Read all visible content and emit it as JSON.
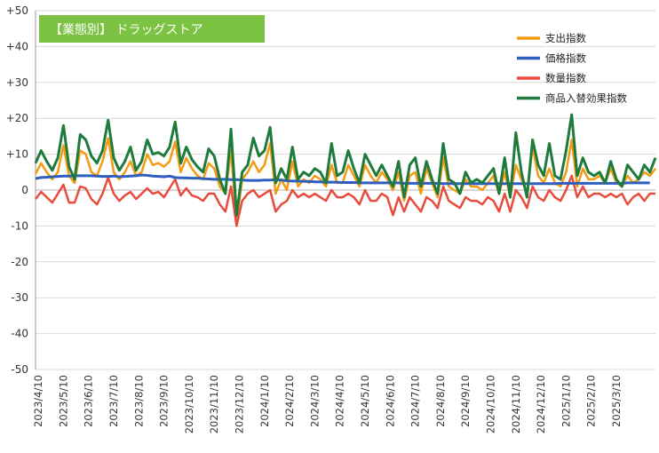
{
  "chart_data": {
    "type": "line",
    "title": "【業態別】 ドラッグストア",
    "title_bg_color": "#7CC243",
    "ylim": [
      -50,
      50
    ],
    "yticks": [
      -50,
      -40,
      -30,
      -20,
      -10,
      0,
      10,
      20,
      30,
      40,
      50
    ],
    "ytick_labels": [
      "-50",
      "-40",
      "-30",
      "-20",
      "-10",
      "0",
      "+10",
      "+20",
      "+30",
      "+40",
      "+50"
    ],
    "x_tick_labels": [
      "2023/4/10",
      "2023/5/10",
      "2023/6/10",
      "2023/7/10",
      "2023/8/10",
      "2023/9/10",
      "2023/10/10",
      "2023/11/10",
      "2023/12/10",
      "2024/1/10",
      "2024/2/10",
      "2024/3/10",
      "2024/4/10",
      "2024/5/10",
      "2024/6/10",
      "2024/7/10",
      "2024/8/10",
      "2024/9/10",
      "2024/10/10",
      "2024/11/10",
      "2024/12/10",
      "2025/1/10",
      "2025/2/10",
      "2025/3/10"
    ],
    "points_per_tick": 4.5,
    "grid": "horizontal",
    "legend_position": "top-right",
    "series": [
      {
        "name": "支出指数",
        "color": "#F39C12",
        "width": 2.5,
        "values": [
          4.5,
          7.5,
          5,
          3,
          5,
          12.5,
          4,
          2,
          11,
          10,
          5,
          4,
          8,
          14.5,
          5,
          3,
          5,
          8,
          4,
          5,
          10,
          7,
          7.5,
          6.5,
          8,
          13.5,
          5,
          9,
          6,
          4,
          3,
          7.5,
          6,
          1,
          -1,
          11,
          -9,
          3,
          5,
          8,
          5,
          7,
          13,
          -1,
          3,
          0,
          8,
          1,
          3,
          2,
          4,
          3,
          1,
          7,
          2,
          2,
          7,
          4,
          1,
          7,
          4,
          2,
          5,
          3,
          0,
          5,
          -3,
          4,
          5,
          -1,
          6,
          2,
          -2,
          9,
          1,
          0,
          -1,
          3,
          1,
          1,
          0,
          2,
          4,
          -1,
          5,
          -2,
          7,
          3,
          -1,
          12,
          4,
          2,
          6,
          2,
          1,
          5,
          14,
          1,
          6,
          3,
          3,
          4,
          2,
          6,
          2,
          1,
          4,
          2,
          3,
          5,
          4,
          6
        ]
      },
      {
        "name": "価格指数",
        "color": "#2E5FBF",
        "width": 3,
        "values": [
          3.2,
          3.5,
          3.6,
          3.7,
          3.8,
          3.9,
          3.9,
          4,
          4,
          4,
          4,
          3.9,
          3.8,
          3.8,
          3.9,
          3.7,
          3.8,
          3.9,
          4,
          4.2,
          4.1,
          3.9,
          3.8,
          3.7,
          3.9,
          3.5,
          3.4,
          3.4,
          3.3,
          3.3,
          3.2,
          3.1,
          3,
          3,
          3,
          2.9,
          2.9,
          2.8,
          2.7,
          2.7,
          2.7,
          2.8,
          2.8,
          2.9,
          2.8,
          2.6,
          2.5,
          2.5,
          2.4,
          2.4,
          2.3,
          2.3,
          2.2,
          2.2,
          2.2,
          2.1,
          2.1,
          2.1,
          2,
          2,
          2,
          2,
          2,
          2,
          2,
          2,
          1.9,
          1.9,
          1.9,
          1.9,
          1.9,
          1.9,
          1.9,
          1.8,
          1.8,
          1.8,
          1.8,
          1.8,
          1.8,
          1.8,
          1.8,
          1.8,
          1.8,
          1.8,
          1.8,
          1.8,
          1.8,
          1.8,
          1.8,
          1.8,
          1.8,
          1.8,
          1.8,
          1.8,
          1.9,
          1.9,
          1.9,
          1.9,
          1.9,
          1.9,
          1.9,
          1.9,
          1.9,
          1.9,
          1.9,
          1.9,
          2,
          2,
          2,
          2,
          2
        ]
      },
      {
        "name": "数量指数",
        "color": "#E74C3C",
        "width": 2.5,
        "values": [
          -2.5,
          -0.5,
          -2,
          -3.5,
          -1,
          1.5,
          -3.5,
          -3.5,
          1,
          0.5,
          -2.5,
          -4,
          -1,
          3.5,
          -1,
          -3,
          -1.5,
          -0.5,
          -2.5,
          -1,
          0.5,
          -1,
          -0.5,
          -2,
          0.5,
          3,
          -1.5,
          0.5,
          -1.5,
          -2,
          -3,
          -1,
          -1,
          -4,
          -6,
          1,
          -10,
          -3,
          -1,
          0,
          -2,
          -1,
          0,
          -6,
          -4,
          -3,
          0,
          -2,
          -1,
          -2,
          -1,
          -2,
          -3,
          0,
          -2,
          -2,
          -1,
          -2,
          -4,
          0,
          -3,
          -3,
          -1,
          -2,
          -7,
          -2,
          -6,
          -2,
          -4,
          -6,
          -2,
          -3,
          -5,
          1,
          -3,
          -4,
          -5,
          -2,
          -3,
          -3,
          -4,
          -2,
          -3,
          -6,
          -1,
          -6,
          0,
          -2,
          -5,
          1,
          -2,
          -3,
          0,
          -2,
          -3,
          0,
          4,
          -2,
          1,
          -2,
          -1,
          -1,
          -2,
          -1,
          -2,
          -1,
          -4,
          -2,
          -1,
          -3,
          -1,
          -1
        ]
      },
      {
        "name": "商品入替効果指数",
        "color": "#1E7B3C",
        "width": 3,
        "values": [
          7.5,
          11,
          8,
          5.5,
          9,
          18,
          6.5,
          3,
          15.5,
          14,
          9.5,
          7.5,
          11,
          19.5,
          9,
          5.5,
          8,
          12,
          5.5,
          8,
          14,
          10,
          10.5,
          9.5,
          12,
          19,
          7.5,
          12,
          8.5,
          6.5,
          5,
          11.5,
          9.5,
          3,
          -1,
          17,
          -7,
          5,
          7,
          14.5,
          9.5,
          11,
          17.5,
          2,
          6,
          3,
          12,
          3,
          5,
          4,
          6,
          5,
          2,
          13,
          4,
          5,
          11,
          6,
          2,
          10,
          7,
          4,
          7,
          4,
          1,
          8,
          -2,
          7,
          9,
          1,
          8,
          3,
          -1,
          13,
          3,
          2,
          -1,
          5,
          2,
          3,
          2,
          4,
          6,
          -1,
          9,
          -2,
          16,
          5,
          -2,
          14,
          7,
          4,
          13,
          4,
          3,
          11,
          21,
          4,
          9,
          5,
          4,
          5,
          2,
          8,
          3,
          1,
          7,
          5,
          3,
          7,
          5,
          9
        ]
      }
    ]
  }
}
